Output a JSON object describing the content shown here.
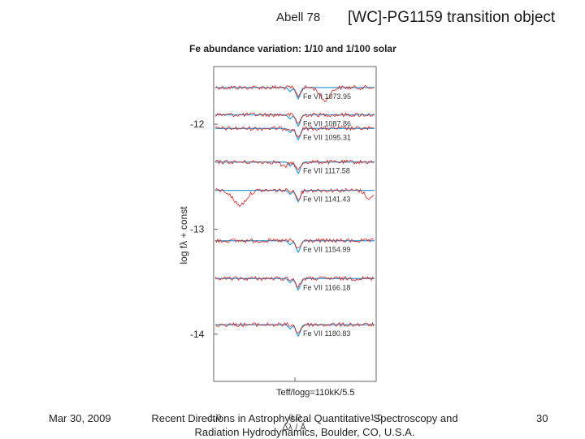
{
  "slide": {
    "title": "[WC]-PG1159 transition object",
    "footer_date": "Mar 30, 2009",
    "footer_text": "Recent Directions in Astrophysical Quantitative Spectroscopy and Radiation Hydrodynamics, Boulder, CO, U.S.A.",
    "page_number": "30"
  },
  "colors": {
    "observed": "#d42020",
    "model": "#3aa0d8",
    "frame": "#666666"
  },
  "chart_data": {
    "type": "line",
    "star": "Abell 78",
    "title": "Fe abundance variation: 1/10 and 1/100 solar",
    "ylabel": "log fλ + const",
    "xlabel": "Δλ / Å",
    "x_ticks": [
      "-1.0",
      "0.0",
      "1.0"
    ],
    "xlim": [
      -1.0,
      1.0
    ],
    "y_ticks": [
      "-12",
      "-13",
      "-14"
    ],
    "ylim": [
      -14.45,
      -11.45
    ],
    "annotation": "Teff/logg=110kK/5.5",
    "series": [
      {
        "name": "Fe VII 1073.95",
        "offset": -11.65
      },
      {
        "name": "Fe VII 1087.86",
        "offset": -11.91
      },
      {
        "name": "Fe VII 1095.31",
        "offset": -12.04
      },
      {
        "name": "Fe VII 1117.58",
        "offset": -12.36
      },
      {
        "name": "Fe VII 1141.43",
        "offset": -12.63
      },
      {
        "name": "Fe VII 1154.99",
        "offset": -13.11
      },
      {
        "name": "Fe VII 1166.18",
        "offset": -13.47
      },
      {
        "name": "Fe VII 1180.83",
        "offset": -13.91
      }
    ]
  }
}
